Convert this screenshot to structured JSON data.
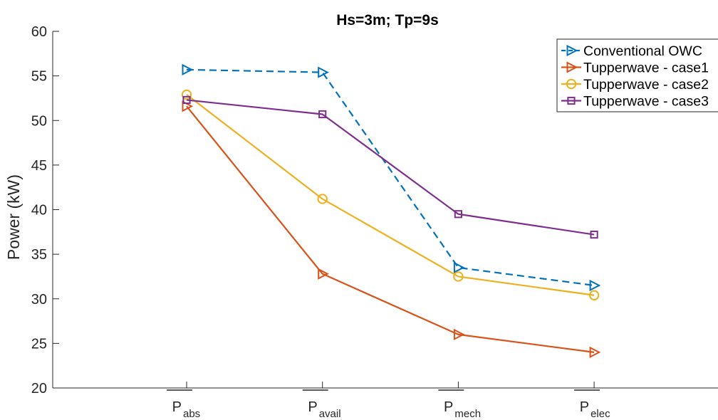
{
  "chart_data": {
    "type": "line",
    "title": "Hs=3m; Tp=9s",
    "xlabel": "",
    "ylabel": "Power (kW)",
    "ylim": [
      20,
      60
    ],
    "yticks": [
      20,
      25,
      30,
      35,
      40,
      45,
      50,
      55,
      60
    ],
    "grid": false,
    "legend_position": "top-right",
    "categories": [
      {
        "base": "P",
        "sub": "abs"
      },
      {
        "base": "P",
        "sub": "avail"
      },
      {
        "base": "P",
        "sub": "mech"
      },
      {
        "base": "P",
        "sub": "elec"
      }
    ],
    "series": [
      {
        "name": "Conventional OWC",
        "values": [
          55.7,
          55.4,
          33.5,
          31.5
        ],
        "color": "#0072BD",
        "marker": "triangle-right",
        "dash": true
      },
      {
        "name": "Tupperwave - case1",
        "values": [
          51.6,
          32.8,
          26.0,
          24.0
        ],
        "color": "#D95319",
        "marker": "triangle-right",
        "dash": false
      },
      {
        "name": "Tupperwave - case2",
        "values": [
          52.9,
          41.2,
          32.5,
          30.4
        ],
        "color": "#EDB120",
        "marker": "circle",
        "dash": false
      },
      {
        "name": "Tupperwave - case3",
        "values": [
          52.3,
          50.7,
          39.5,
          37.2
        ],
        "color": "#7E2F8E",
        "marker": "square",
        "dash": false
      }
    ]
  }
}
